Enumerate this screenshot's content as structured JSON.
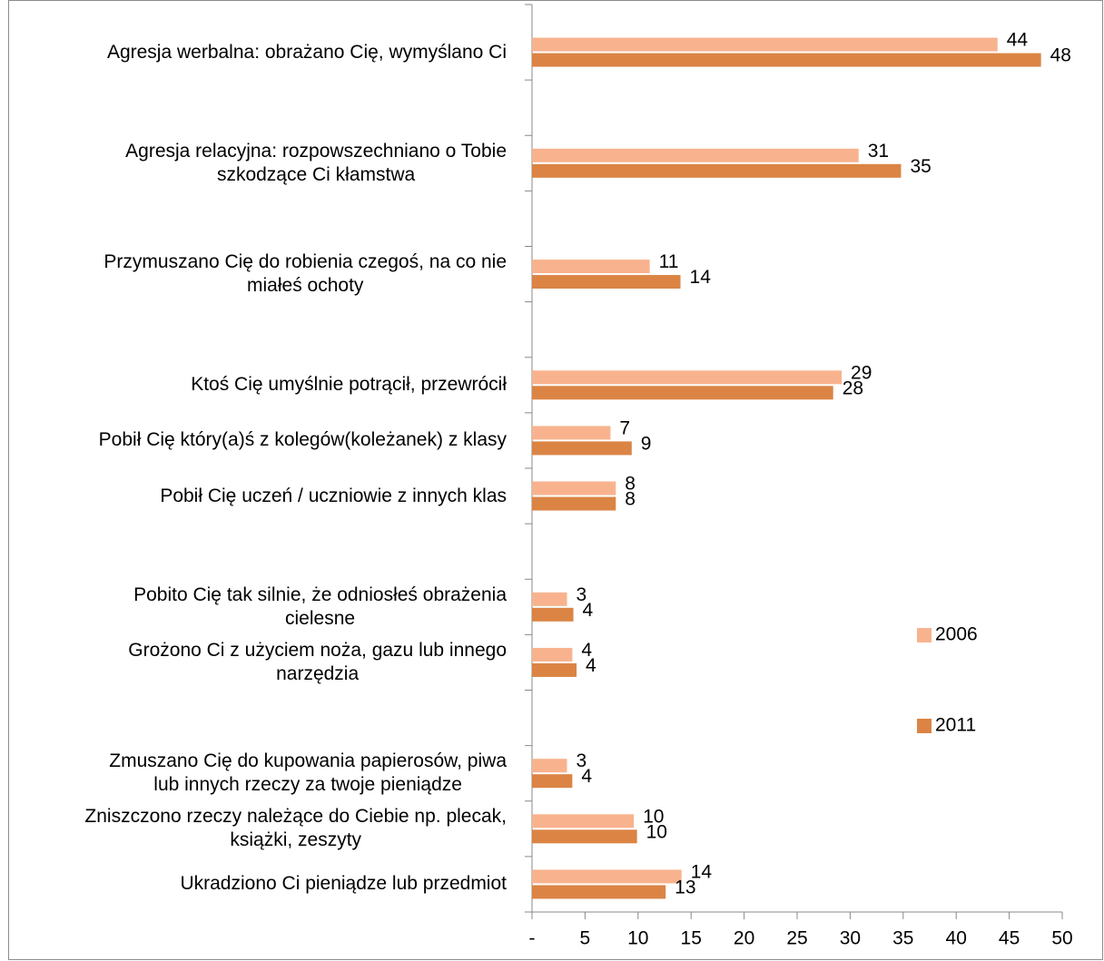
{
  "chart_data": {
    "type": "hbar",
    "categories": [
      "Agresja werbalna: obrażano Cię, wymyślano Ci",
      null,
      "Agresja relacyjna: rozpowszechniano o Tobie\nszkodzące Ci kłamstwa",
      null,
      "Przymuszano Cię do robienia czegoś, na co nie\nmiałeś ochoty",
      null,
      "Ktoś Cię umyślnie potrącił, przewrócił",
      "Pobił Cię który(a)ś z kolegów(koleżanek) z klasy",
      "Pobił Cię uczeń / uczniowie z innych klas",
      null,
      "Pobito Cię tak silnie, że odniosłeś obrażenia\ncielesne",
      "Grożono Ci z użyciem noża, gazu lub innego\nnarzędzia",
      null,
      "Zmuszano Cię do kupowania papierosów, piwa\nlub innych rzeczy za twoje pieniądze",
      "Zniszczono rzeczy należące do Ciebie np. plecak,\nksiążki, zeszyty",
      "Ukradziono Ci pieniądze lub przedmiot"
    ],
    "series": [
      {
        "name": "2006",
        "color": "#f8b38e",
        "values": [
          43.9,
          null,
          30.8,
          null,
          11.1,
          null,
          29.2,
          7.4,
          7.9,
          null,
          3.3,
          3.8,
          null,
          3.3,
          9.6,
          14.1
        ],
        "value_labels": [
          "44",
          null,
          "31",
          null,
          "11",
          null,
          "29",
          "7",
          "8",
          null,
          "3",
          "4",
          null,
          "3",
          "10",
          "14"
        ]
      },
      {
        "name": "2011",
        "color": "#db8444",
        "values": [
          48,
          null,
          34.8,
          null,
          14,
          null,
          28.4,
          9.4,
          7.9,
          null,
          3.9,
          4.2,
          null,
          3.8,
          9.9,
          12.6
        ],
        "value_labels": [
          "48",
          null,
          "35",
          null,
          "14",
          null,
          "28",
          "9",
          "8",
          null,
          "4",
          "4",
          null,
          "4",
          "10",
          "13"
        ]
      }
    ],
    "xlim": [
      0,
      50
    ],
    "xticks": [
      {
        "value": 0,
        "label": "-"
      },
      5,
      10,
      15,
      20,
      25,
      30,
      35,
      40,
      45,
      50
    ],
    "legend": "right"
  }
}
